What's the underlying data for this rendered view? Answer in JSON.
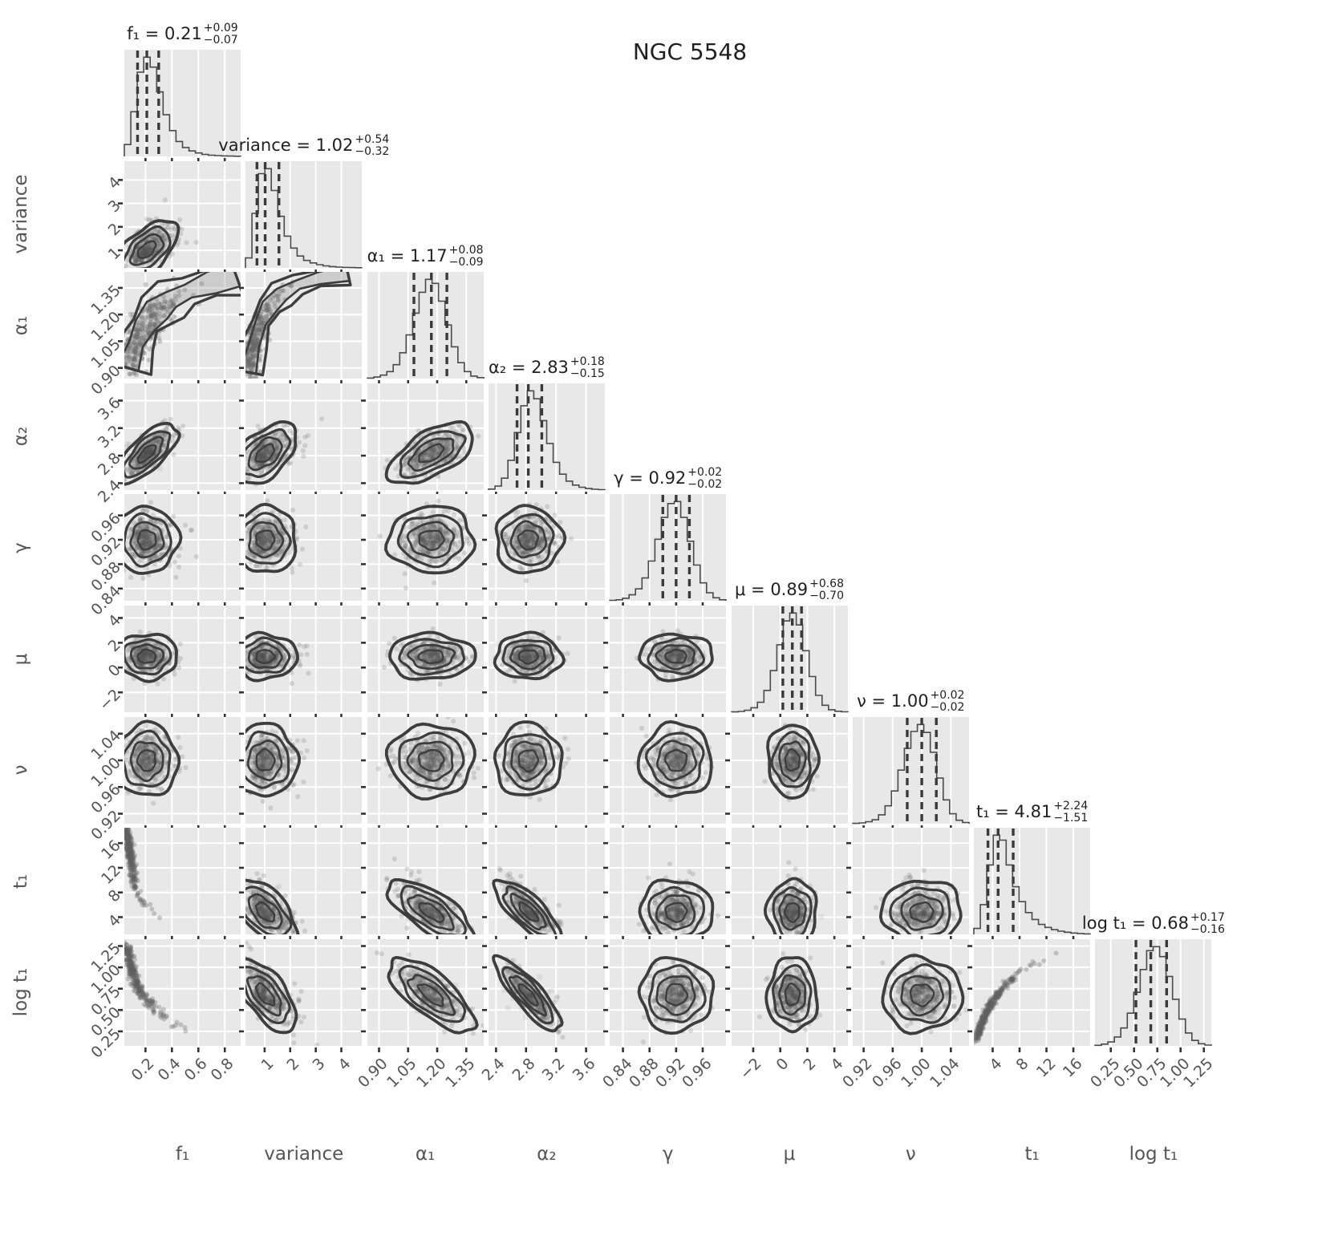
{
  "chart_data": {
    "type": "corner-plot",
    "suptitle": "NGC 5548",
    "grid": true,
    "colors": {
      "panel_bg": "#e8e8e8",
      "grid_line": "#ffffff",
      "contour": "#3d3d3d",
      "histogram": "#4a4a4a",
      "quantile_dash": "#3a3a3a",
      "scatter": "#5f5f5f",
      "tick": "#333333",
      "label_text": "#555555",
      "title_text": "#1f1f1f"
    },
    "parameters": [
      {
        "id": "f1",
        "label": "f₁",
        "estimate": "0.21",
        "err_plus": "+0.09",
        "err_minus": "−0.07",
        "range": [
          0.04,
          0.92
        ],
        "tick_values": [
          0.2,
          0.4,
          0.6,
          0.8
        ],
        "tick_labels": [
          "0.2",
          "0.4",
          "0.6",
          "0.8"
        ],
        "quantiles": [
          0.14,
          0.21,
          0.3
        ],
        "sigma": [
          0.07,
          0.11
        ],
        "hist": [
          12,
          45,
          85,
          100,
          90,
          65,
          42,
          26,
          15,
          9,
          5.5,
          3.5,
          2,
          1.2,
          0.8,
          0.5,
          0.3,
          0.2
        ]
      },
      {
        "id": "variance",
        "label": "variance",
        "estimate": "1.02",
        "err_plus": "+0.54",
        "err_minus": "−0.32",
        "range": [
          0.25,
          4.8
        ],
        "tick_values": [
          1,
          2,
          3,
          4
        ],
        "tick_labels": [
          "1",
          "2",
          "3",
          "4"
        ],
        "quantiles": [
          0.7,
          1.02,
          1.56
        ],
        "sigma": [
          0.33,
          0.62
        ],
        "hist": [
          10,
          55,
          95,
          100,
          78,
          52,
          32,
          20,
          12,
          7.5,
          5,
          3.2,
          2,
          1.3,
          0.8,
          0.5,
          0.3,
          0.2
        ]
      },
      {
        "id": "a1",
        "label": "α₁",
        "estimate": "1.17",
        "err_plus": "+0.08",
        "err_minus": "−0.09",
        "range": [
          0.84,
          1.44
        ],
        "tick_values": [
          0.9,
          1.05,
          1.2,
          1.35
        ],
        "tick_labels": [
          "0.90",
          "1.05",
          "1.20",
          "1.35"
        ],
        "quantiles": [
          1.08,
          1.17,
          1.25
        ],
        "sigma": [
          0.085,
          0.085
        ],
        "hist": [
          0.5,
          1.5,
          3.5,
          7,
          14,
          26,
          44,
          66,
          87,
          100,
          96,
          78,
          54,
          32,
          16,
          7,
          2.5,
          1
        ]
      },
      {
        "id": "a2",
        "label": "α₂",
        "estimate": "2.83",
        "err_plus": "+0.18",
        "err_minus": "−0.15",
        "range": [
          2.3,
          3.85
        ],
        "tick_values": [
          2.4,
          2.8,
          3.2,
          3.6
        ],
        "tick_labels": [
          "2.4",
          "2.8",
          "3.2",
          "3.6"
        ],
        "quantiles": [
          2.68,
          2.83,
          3.01
        ],
        "sigma": [
          0.15,
          0.19
        ],
        "hist": [
          1,
          4,
          12,
          30,
          58,
          85,
          100,
          92,
          70,
          47,
          28,
          16,
          9,
          5,
          2.8,
          1.5,
          0.8,
          0.4
        ]
      },
      {
        "id": "gamma",
        "label": "γ",
        "estimate": "0.92",
        "err_plus": "+0.02",
        "err_minus": "−0.02",
        "range": [
          0.82,
          0.995
        ],
        "tick_values": [
          0.84,
          0.88,
          0.92,
          0.96
        ],
        "tick_labels": [
          "0.84",
          "0.88",
          "0.92",
          "0.96"
        ],
        "quantiles": [
          0.9,
          0.92,
          0.94
        ],
        "sigma": [
          0.021,
          0.021
        ],
        "hist": [
          0.4,
          1,
          2.5,
          6,
          12,
          23,
          40,
          62,
          84,
          98,
          100,
          84,
          60,
          36,
          18,
          8,
          3,
          1
        ]
      },
      {
        "id": "mu",
        "label": "μ",
        "estimate": "0.89",
        "err_plus": "+0.68",
        "err_minus": "−0.70",
        "range": [
          -3.6,
          5.0
        ],
        "tick_values": [
          -2,
          0,
          2,
          4
        ],
        "tick_labels": [
          "−2",
          "0",
          "2",
          "4"
        ],
        "quantiles": [
          0.19,
          0.89,
          1.57
        ],
        "sigma": [
          0.71,
          0.7
        ],
        "hist": [
          0.3,
          0.8,
          2,
          4.5,
          10,
          22,
          42,
          68,
          92,
          100,
          88,
          62,
          36,
          17,
          7,
          2.5,
          1,
          0.4
        ]
      },
      {
        "id": "nu",
        "label": "ν",
        "estimate": "1.00",
        "err_plus": "+0.02",
        "err_minus": "−0.02",
        "range": [
          0.905,
          1.065
        ],
        "tick_values": [
          0.92,
          0.96,
          1.0,
          1.04
        ],
        "tick_labels": [
          "0.92",
          "0.96",
          "1.00",
          "1.04"
        ],
        "quantiles": [
          0.98,
          1.0,
          1.02
        ],
        "sigma": [
          0.021,
          0.021
        ],
        "hist": [
          0.3,
          0.8,
          2,
          4,
          9,
          18,
          33,
          54,
          76,
          93,
          100,
          92,
          72,
          46,
          24,
          10,
          3.5,
          1.2
        ]
      },
      {
        "id": "t1",
        "label": "t₁",
        "estimate": "4.81",
        "err_plus": "+2.24",
        "err_minus": "−1.51",
        "range": [
          1.2,
          18.5
        ],
        "tick_values": [
          4,
          8,
          12,
          16
        ],
        "tick_labels": [
          "4",
          "8",
          "12",
          "16"
        ],
        "quantiles": [
          3.3,
          4.81,
          7.05
        ],
        "sigma": [
          1.55,
          2.5
        ],
        "hist": [
          6,
          30,
          70,
          100,
          95,
          70,
          48,
          33,
          22,
          15,
          10,
          7,
          4.8,
          3.2,
          2.2,
          1.4,
          0.9,
          0.5
        ]
      },
      {
        "id": "logt1",
        "label": "log t₁",
        "estimate": "0.68",
        "err_plus": "+0.17",
        "err_minus": "−0.16",
        "range": [
          0.08,
          1.33
        ],
        "tick_values": [
          0.25,
          0.5,
          0.75,
          1.0,
          1.25
        ],
        "tick_labels": [
          "0.25",
          "0.50",
          "0.75",
          "1.00",
          "1.25"
        ],
        "quantiles": [
          0.52,
          0.68,
          0.85
        ],
        "sigma": [
          0.163,
          0.17
        ],
        "hist": [
          0.6,
          1.8,
          4,
          9,
          18,
          33,
          54,
          77,
          96,
          100,
          90,
          70,
          47,
          27,
          13,
          5.5,
          2.2,
          0.8
        ]
      }
    ],
    "pair_overrides": [
      {
        "row": "variance",
        "col": "f1",
        "rho": 0.55
      },
      {
        "row": "a1",
        "col": "f1",
        "type": "curve",
        "width": 0.07,
        "bias": [
          0.25,
          0.18
        ],
        "band": true,
        "pts": [
          [
            0.03,
            0.1
          ],
          [
            0.1,
            0.32
          ],
          [
            0.18,
            0.5
          ],
          [
            0.28,
            0.64
          ],
          [
            0.4,
            0.74
          ],
          [
            0.55,
            0.82
          ],
          [
            0.75,
            0.9
          ],
          [
            0.96,
            0.97
          ]
        ]
      },
      {
        "row": "a1",
        "col": "variance",
        "type": "curve",
        "width": 0.045,
        "bias": [
          0.22,
          0.16
        ],
        "band": true,
        "pts": [
          [
            0.02,
            0.06
          ],
          [
            0.07,
            0.3
          ],
          [
            0.13,
            0.52
          ],
          [
            0.21,
            0.68
          ],
          [
            0.31,
            0.79
          ],
          [
            0.45,
            0.88
          ],
          [
            0.63,
            0.94
          ],
          [
            0.88,
            0.99
          ]
        ]
      },
      {
        "row": "a2",
        "col": "f1",
        "rho": 0.72
      },
      {
        "row": "a2",
        "col": "variance",
        "rho": 0.5
      },
      {
        "row": "a2",
        "col": "a1",
        "rho": 0.6
      },
      {
        "row": "t1",
        "col": "f1",
        "type": "curve",
        "width": 0.016,
        "bias": [
          0.1,
          0.18
        ],
        "band": false,
        "pts": [
          [
            0.02,
            0.97
          ],
          [
            0.05,
            0.72
          ],
          [
            0.08,
            0.52
          ],
          [
            0.12,
            0.38
          ],
          [
            0.17,
            0.28
          ],
          [
            0.25,
            0.19
          ],
          [
            0.35,
            0.13
          ],
          [
            0.5,
            0.08
          ],
          [
            0.68,
            0.05
          ],
          [
            0.9,
            0.03
          ]
        ]
      },
      {
        "row": "t1",
        "col": "variance",
        "rho": -0.55
      },
      {
        "row": "t1",
        "col": "a1",
        "rho": -0.7
      },
      {
        "row": "t1",
        "col": "a2",
        "rho": -0.78
      },
      {
        "row": "logt1",
        "col": "f1",
        "type": "curve",
        "width": 0.02,
        "bias": [
          0.15,
          0.2
        ],
        "band": false,
        "pts": [
          [
            0.02,
            0.93
          ],
          [
            0.06,
            0.73
          ],
          [
            0.1,
            0.59
          ],
          [
            0.16,
            0.47
          ],
          [
            0.24,
            0.37
          ],
          [
            0.34,
            0.28
          ],
          [
            0.47,
            0.2
          ],
          [
            0.62,
            0.13
          ],
          [
            0.8,
            0.06
          ],
          [
            0.96,
            0.02
          ]
        ]
      },
      {
        "row": "logt1",
        "col": "variance",
        "rho": -0.65
      },
      {
        "row": "logt1",
        "col": "a1",
        "rho": -0.72
      },
      {
        "row": "logt1",
        "col": "a2",
        "rho": -0.85
      },
      {
        "row": "logt1",
        "col": "t1",
        "type": "curve",
        "width": 0.013,
        "bias": [
          0.22,
          0.18
        ],
        "band": false,
        "pts": [
          [
            0.02,
            0.05
          ],
          [
            0.06,
            0.19
          ],
          [
            0.12,
            0.34
          ],
          [
            0.2,
            0.48
          ],
          [
            0.3,
            0.6
          ],
          [
            0.42,
            0.7
          ],
          [
            0.56,
            0.79
          ],
          [
            0.72,
            0.88
          ],
          [
            0.92,
            0.96
          ]
        ]
      }
    ]
  }
}
